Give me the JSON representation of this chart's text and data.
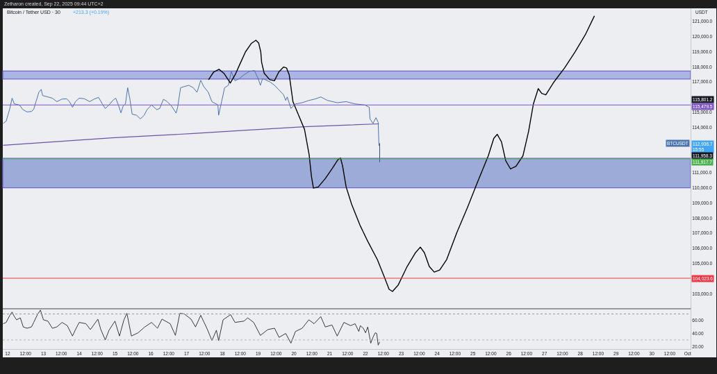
{
  "chart_data": [
    {
      "type": "line",
      "title": "Bitcoin / Tether USD · 30",
      "subtitle": "+213.3 (+0.19%)",
      "ylabel": "USDT",
      "annotations": [
        "Zetharon created, Sep 22, 2025 09:44 UTC+2",
        {
          "text": "115,801.2",
          "y": 115801.2
        },
        "112,936.7\n15:55"
      ],
      "x": [
        "2025-09-11T21:00",
        "2025-09-11T23:00",
        "2025-09-12T01:30",
        "2025-09-12T03:00",
        "2025-09-12T04:30",
        "2025-09-12T07:00",
        "2025-09-12T08:30",
        "2025-09-12T10:00",
        "2025-09-12T13:00",
        "2025-09-12T16:00",
        "2025-09-12T17:30",
        "2025-09-12T19:00",
        "2025-09-12T21:00",
        "2025-09-12T22:30",
        "2025-09-12T23:30",
        "2025-09-13T03:00",
        "2025-09-13T06:00",
        "2025-09-13T09:00",
        "2025-09-13T12:30",
        "2025-09-13T15:30",
        "2025-09-13T17:30",
        "2025-09-13T19:30",
        "2025-09-13T21:30",
        "2025-09-14T00:00",
        "2025-09-14T03:30",
        "2025-09-14T07:00",
        "2025-09-14T10:00",
        "2025-09-14T13:00",
        "2025-09-14T15:30",
        "2025-09-14T17:30",
        "2025-09-14T20:00",
        "2025-09-14T22:30",
        "2025-09-15T00:30",
        "2025-09-15T02:30",
        "2025-09-15T04:00",
        "2025-09-15T05:30",
        "2025-09-15T07:00",
        "2025-09-15T08:30",
        "2025-09-15T10:00",
        "2025-09-15T11:30",
        "2025-09-15T14:30",
        "2025-09-15T17:00",
        "2025-09-15T19:30",
        "2025-09-15T21:30",
        "2025-09-16T00:30",
        "2025-09-16T04:00",
        "2025-09-16T06:00",
        "2025-09-16T08:30",
        "2025-09-16T11:00",
        "2025-09-16T14:00",
        "2025-09-16T17:00",
        "2025-09-16T18:00",
        "2025-09-16T20:00",
        "2025-09-16T22:30",
        "2025-09-17T01:30",
        "2025-09-17T04:30",
        "2025-09-17T07:00",
        "2025-09-17T09:30",
        "2025-09-17T11:30",
        "2025-09-17T14:30",
        "2025-09-17T17:00",
        "2025-09-17T21:00",
        "2025-09-17T21:30",
        "2025-09-17T23:30",
        "2025-09-18T01:30",
        "2025-09-18T04:00",
        "2025-09-18T06:00",
        "2025-09-18T08:30",
        "2025-09-18T11:30",
        "2025-09-18T14:30",
        "2025-09-18T18:00",
        "2025-09-18T21:30",
        "2025-09-19T00:00",
        "2025-09-19T01:30",
        "2025-09-19T03:00",
        "2025-09-19T08:00",
        "2025-09-19T11:00",
        "2025-09-19T14:00",
        "2025-09-19T17:00",
        "2025-09-19T18:30",
        "2025-09-19T19:30",
        "2025-09-19T22:00",
        "2025-09-20T01:00",
        "2025-09-20T05:30",
        "2025-09-20T10:00",
        "2025-09-20T14:00",
        "2025-09-20T18:00",
        "2025-09-20T22:30",
        "2025-09-21T05:00",
        "2025-09-21T11:00",
        "2025-09-21T17:00",
        "2025-09-21T23:30",
        "2025-09-22T02:30",
        "2025-09-22T03:00",
        "2025-09-22T05:00",
        "2025-09-22T07:00",
        "2025-09-22T08:30",
        "2025-09-22T09:00",
        "2025-09-22T09:30"
      ],
      "series": [
        {
          "name": "BTCUSDT",
          "color": "#4d73ad",
          "values": [
            114260,
            114410,
            115250,
            115930,
            115550,
            115500,
            115420,
            115190,
            115020,
            115050,
            115190,
            115700,
            116330,
            116510,
            116100,
            116010,
            115930,
            115700,
            115870,
            115890,
            115700,
            115330,
            115700,
            115930,
            115890,
            115700,
            115870,
            115980,
            115550,
            115250,
            115480,
            115780,
            115930,
            115420,
            114960,
            115420,
            115550,
            116620,
            115870,
            114870,
            114800,
            114560,
            114790,
            115170,
            115480,
            115170,
            115250,
            115860,
            115700,
            115400,
            114940,
            115330,
            116620,
            116700,
            116780,
            116620,
            116320,
            117110,
            116700,
            116330,
            115700,
            115480,
            114800,
            115700,
            116620,
            116780,
            117690,
            117080,
            117230,
            117480,
            117690,
            117760,
            117230,
            116780,
            117230,
            117000,
            116780,
            116470,
            116160,
            115780,
            116010,
            115250,
            115550,
            115630,
            115780,
            115870,
            116010,
            115780,
            115630,
            115700,
            115550,
            115480,
            115330,
            114560,
            114260,
            114640,
            114330,
            112800,
            112936.7
          ]
        },
        {
          "color": "#6c52a8",
          "x": [
            "2025-09-11T21:00",
            "2025-09-14T22:00",
            "2025-09-17T04:30",
            "2025-09-18T08:30",
            "2025-09-20T07:00",
            "2025-09-22T09:00"
          ],
          "values": [
            112810,
            113310,
            113590,
            113770,
            114040,
            114230
          ]
        },
        {
          "color": "#000000",
          "x": [
            "2025-09-17T14:45",
            "2025-09-17T18:10",
            "2025-09-17T21:45",
            "2025-09-18T01:05",
            "2025-09-18T05:20",
            "2025-09-18T08:35",
            "2025-09-18T11:40",
            "2025-09-18T15:30",
            "2025-09-18T19:20",
            "2025-09-18T22:30",
            "2025-09-19T00:20",
            "2025-09-19T01:45",
            "2025-09-19T02:20",
            "2025-09-19T04:05",
            "2025-09-19T07:50",
            "2025-09-19T10:55",
            "2025-09-19T13:50",
            "2025-09-19T17:05",
            "2025-09-19T19:00",
            "2025-09-19T20:50",
            "2025-09-19T23:20",
            "2025-09-20T03:10",
            "2025-09-20T07:05",
            "2025-09-20T10:10",
            "2025-09-20T11:45",
            "2025-09-20T13:05",
            "2025-09-20T16:20",
            "2025-09-20T21:00",
            "2025-09-21T01:40",
            "2025-09-21T05:25",
            "2025-09-21T07:15",
            "2025-09-21T08:40",
            "2025-09-21T11:00",
            "2025-09-21T14:40",
            "2025-09-21T20:15",
            "2025-09-22T01:50",
            "2025-09-22T07:55",
            "2025-09-22T12:35",
            "2025-09-22T15:50",
            "2025-09-22T18:05",
            "2025-09-22T21:50",
            "2025-09-23T03:55",
            "2025-09-23T09:30",
            "2025-09-23T12:45",
            "2025-09-23T15:30",
            "2025-09-23T18:45",
            "2025-09-23T22:05",
            "2025-09-24T01:45",
            "2025-09-24T06:25",
            "2025-09-24T13:25",
            "2025-09-24T20:20",
            "2025-09-25T03:20",
            "2025-09-25T10:20",
            "2025-09-25T14:00",
            "2025-09-25T16:20",
            "2025-09-25T19:10",
            "2025-09-25T22:00",
            "2025-09-26T01:15",
            "2025-09-26T04:55",
            "2025-09-26T09:35",
            "2025-09-26T13:20",
            "2025-09-26T16:35",
            "2025-09-26T19:50",
            "2025-09-26T22:10",
            "2025-09-27T00:55",
            "2025-09-27T06:30",
            "2025-09-27T13:30",
            "2025-09-27T20:30",
            "2025-09-28T03:25",
            "2025-09-28T09:30"
          ],
          "values": [
            117150,
            117660,
            117840,
            117570,
            116930,
            117480,
            118160,
            118990,
            119540,
            119760,
            119580,
            118990,
            118300,
            117570,
            117150,
            117080,
            117660,
            117990,
            117930,
            117480,
            115700,
            114790,
            113870,
            112210,
            110750,
            109980,
            110060,
            110610,
            111280,
            111850,
            111970,
            111430,
            110060,
            108920,
            107540,
            106400,
            105260,
            104110,
            103290,
            103150,
            103560,
            104800,
            105710,
            106080,
            105710,
            104800,
            104430,
            104570,
            105260,
            107090,
            108690,
            110430,
            112120,
            113270,
            113540,
            113040,
            111800,
            111250,
            111430,
            112120,
            113720,
            115550,
            116560,
            116240,
            116150,
            117020,
            117930,
            118990,
            120130,
            121370
          ]
        },
        {
          "color": "#34507f",
          "x": [
            "2025-09-22T09:30",
            "2025-09-22T09:30"
          ],
          "values": [
            112936.7,
            111700
          ]
        }
      ],
      "xlim": [
        "2025-09-11T20:45",
        "2025-10-01T02:00"
      ],
      "ylim": [
        102050,
        121870
      ],
      "yticks": [
        {
          "value": 103000,
          "label": "103,000.0"
        },
        {
          "value": 105000,
          "label": "105,000.0"
        },
        {
          "value": 106000,
          "label": "106,000.0"
        },
        {
          "value": 107000,
          "label": "107,000.0"
        },
        {
          "value": 108000,
          "label": "108,000.0"
        },
        {
          "value": 109000,
          "label": "109,000.0"
        },
        {
          "value": 110000,
          "label": "110,000.0"
        },
        {
          "value": 111000,
          "label": "111,000.0"
        },
        {
          "value": 114000,
          "label": "114,000.0"
        },
        {
          "value": 115000,
          "label": "115,000.0"
        },
        {
          "value": 117000,
          "label": "117,000.0"
        },
        {
          "value": 118000,
          "label": "118,000.0"
        },
        {
          "value": 119000,
          "label": "119,000.0"
        },
        {
          "value": 120000,
          "label": "120,000.0"
        },
        {
          "value": 121000,
          "label": "121,000.0"
        }
      ],
      "ref_lines": [
        {
          "axis": "y",
          "value": 115479.5,
          "label": "115,479.5",
          "color": "#7e57c2"
        },
        {
          "axis": "y",
          "value": 111917.7,
          "label": "111,917.7",
          "color": "#4caf50"
        },
        {
          "axis": "y",
          "value": 104023.6,
          "label": "104,023.6",
          "color": "#f23645"
        }
      ],
      "bands": [
        {
          "axis": "y",
          "from": 117200,
          "to": 117720,
          "color": "#a9b6e2"
        },
        {
          "axis": "y",
          "from": 110000,
          "to": 111958.3,
          "label": "111,958.3",
          "color": "#9dabd8"
        }
      ],
      "tick_labels": "y"
    },
    {
      "type": "line",
      "x": [
        "2025-09-11T21:00",
        "2025-09-11T23:00",
        "2025-09-12T01:30",
        "2025-09-12T03:00",
        "2025-09-12T04:30",
        "2025-09-12T06:00",
        "2025-09-12T08:30",
        "2025-09-12T10:30",
        "2025-09-12T13:00",
        "2025-09-12T16:00",
        "2025-09-12T17:30",
        "2025-09-12T20:00",
        "2025-09-12T22:00",
        "2025-09-13T00:00",
        "2025-09-13T03:00",
        "2025-09-13T06:00",
        "2025-09-13T09:00",
        "2025-09-13T12:30",
        "2025-09-13T16:00",
        "2025-09-13T19:30",
        "2025-09-13T21:30",
        "2025-09-14T00:00",
        "2025-09-14T04:30",
        "2025-09-14T07:30",
        "2025-09-14T12:30",
        "2025-09-14T14:30",
        "2025-09-14T17:30",
        "2025-09-14T20:00",
        "2025-09-15T00:00",
        "2025-09-15T03:00",
        "2025-09-15T06:00",
        "2025-09-15T08:00",
        "2025-09-15T11:00",
        "2025-09-15T15:30",
        "2025-09-15T20:00",
        "2025-09-16T00:30",
        "2025-09-16T04:30",
        "2025-09-16T07:30",
        "2025-09-16T13:00",
        "2025-09-16T16:30",
        "2025-09-16T19:30",
        "2025-09-16T22:30",
        "2025-09-17T03:00",
        "2025-09-17T06:00",
        "2025-09-17T09:30",
        "2025-09-17T14:00",
        "2025-09-17T17:00",
        "2025-09-17T20:00",
        "2025-09-17T21:30",
        "2025-09-18T00:30",
        "2025-09-18T05:30",
        "2025-09-18T08:30",
        "2025-09-18T14:30",
        "2025-09-18T17:00",
        "2025-09-18T21:00",
        "2025-09-19T01:30",
        "2025-09-19T06:30",
        "2025-09-19T11:00",
        "2025-09-19T14:00",
        "2025-09-19T18:30",
        "2025-09-19T22:00",
        "2025-09-20T01:00",
        "2025-09-20T05:30",
        "2025-09-20T10:00",
        "2025-09-20T13:30",
        "2025-09-20T18:00",
        "2025-09-20T21:00",
        "2025-09-21T01:30",
        "2025-09-21T05:00",
        "2025-09-21T09:30",
        "2025-09-21T14:00",
        "2025-09-21T17:00",
        "2025-09-21T19:30",
        "2025-09-21T20:30",
        "2025-09-21T22:30",
        "2025-09-22T00:00",
        "2025-09-22T01:30",
        "2025-09-22T03:30",
        "2025-09-22T05:00",
        "2025-09-22T06:30",
        "2025-09-22T07:30",
        "2025-09-22T08:30",
        "2025-09-22T09:30"
      ],
      "series": [
        {
          "color": "#3a3a3a",
          "values": [
            55,
            57,
            68,
            73,
            66,
            61,
            64,
            50,
            48,
            50,
            57,
            69,
            76,
            61,
            59,
            48,
            50,
            57,
            52,
            36,
            46,
            57,
            55,
            46,
            62,
            46,
            30,
            45,
            59,
            36,
            61,
            71,
            36,
            41,
            50,
            57,
            48,
            62,
            55,
            37,
            71,
            70,
            62,
            50,
            68,
            46,
            29,
            45,
            29,
            61,
            69,
            57,
            59,
            64,
            57,
            37,
            46,
            48,
            34,
            40,
            25,
            43,
            48,
            61,
            55,
            66,
            50,
            53,
            36,
            57,
            52,
            55,
            43,
            52,
            48,
            41,
            50,
            25,
            34,
            41,
            40,
            22,
            27
          ]
        }
      ],
      "xlim": [
        "2025-09-11T20:45",
        "2025-10-01T02:00"
      ],
      "xticks": [
        {
          "value": "2025-09-12",
          "label": "12"
        },
        {
          "value": "2025-09-12T12:00",
          "label": "12:00"
        },
        {
          "value": "2025-09-13",
          "label": "13"
        },
        {
          "value": "2025-09-13T12:00",
          "label": "12:00"
        },
        {
          "value": "2025-09-14",
          "label": "14"
        },
        {
          "value": "2025-09-14T12:00",
          "label": "12:00"
        },
        {
          "value": "2025-09-15",
          "label": "15"
        },
        {
          "value": "2025-09-15T12:00",
          "label": "12:00"
        },
        {
          "value": "2025-09-16",
          "label": "16"
        },
        {
          "value": "2025-09-16T12:00",
          "label": "12:00"
        },
        {
          "value": "2025-09-17",
          "label": "17"
        },
        {
          "value": "2025-09-17T12:00",
          "label": "12:00"
        },
        {
          "value": "2025-09-18",
          "label": "18"
        },
        {
          "value": "2025-09-18T12:00",
          "label": "12:00"
        },
        {
          "value": "2025-09-19",
          "label": "19"
        },
        {
          "value": "2025-09-19T12:00",
          "label": "12:00"
        },
        {
          "value": "2025-09-20",
          "label": "20"
        },
        {
          "value": "2025-09-20T12:00",
          "label": "12:00"
        },
        {
          "value": "2025-09-21",
          "label": "21"
        },
        {
          "value": "2025-09-21T12:00",
          "label": "12:00"
        },
        {
          "value": "2025-09-22",
          "label": "22"
        },
        {
          "value": "2025-09-22T12:00",
          "label": "12:00"
        },
        {
          "value": "2025-09-23",
          "label": "23"
        },
        {
          "value": "2025-09-23T12:00",
          "label": "12:00"
        },
        {
          "value": "2025-09-24",
          "label": "24"
        },
        {
          "value": "2025-09-24T12:00",
          "label": "12:00"
        },
        {
          "value": "2025-09-25",
          "label": "25"
        },
        {
          "value": "2025-09-25T12:00",
          "label": "12:00"
        },
        {
          "value": "2025-09-26",
          "label": "26"
        },
        {
          "value": "2025-09-26T12:00",
          "label": "12:00"
        },
        {
          "value": "2025-09-27",
          "label": "27"
        },
        {
          "value": "2025-09-27T12:00",
          "label": "12:00"
        },
        {
          "value": "2025-09-28",
          "label": "28"
        },
        {
          "value": "2025-09-28T12:00",
          "label": "12:00"
        },
        {
          "value": "2025-09-29",
          "label": "29"
        },
        {
          "value": "2025-09-29T12:00",
          "label": "12:00"
        },
        {
          "value": "2025-09-30",
          "label": "30"
        },
        {
          "value": "2025-09-30T12:00",
          "label": "12:00"
        },
        {
          "value": "2025-10-01",
          "label": "Oct"
        }
      ],
      "ylim": [
        16,
        78
      ],
      "yticks": [
        {
          "value": 20,
          "label": "20.00"
        },
        {
          "value": 40,
          "label": "40.00"
        },
        {
          "value": 60,
          "label": "60.00"
        }
      ],
      "ref_lines": [
        {
          "axis": "y",
          "value": 70,
          "color": "#9598a1",
          "line_style": "dotted"
        },
        {
          "axis": "y",
          "value": 30,
          "color": "#b2b5be",
          "line_style": "dotted"
        }
      ]
    }
  ]
}
